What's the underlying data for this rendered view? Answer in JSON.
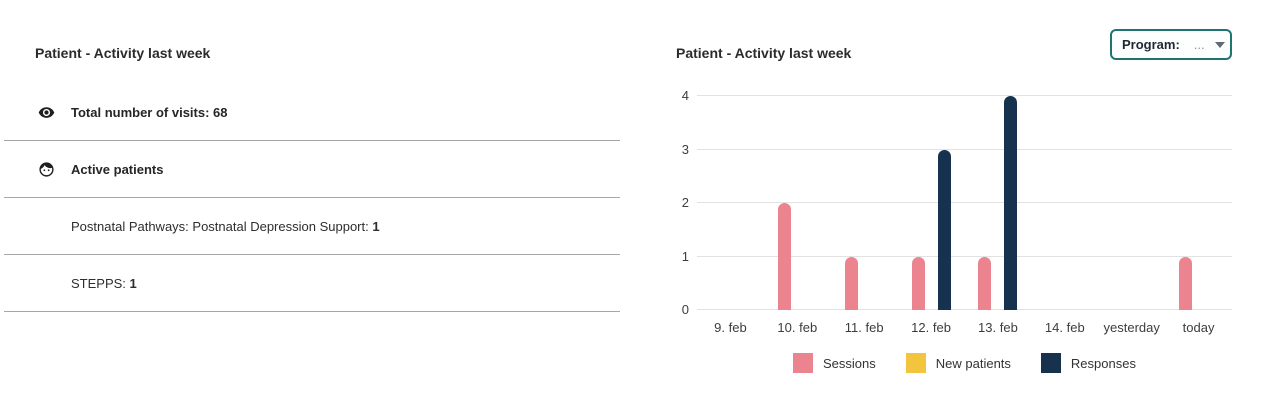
{
  "left_panel": {
    "title": "Patient - Activity last week",
    "rows": [
      {
        "icon": "eye-icon",
        "label": "Total number of visits: 68",
        "emphasis": true
      },
      {
        "icon": "face-icon",
        "label": "Active patients",
        "emphasis": true
      },
      {
        "icon": null,
        "label": "Postnatal Pathways: Postnatal Depression Support:",
        "value": "1",
        "emphasis": false
      },
      {
        "icon": null,
        "label": "STEPPS:",
        "value": "1",
        "emphasis": false
      }
    ]
  },
  "right_panel": {
    "title": "Patient - Activity last week",
    "program_filter": {
      "label": "Program:",
      "value": "...",
      "icon": "chevron-down-icon"
    }
  },
  "chart_data": {
    "type": "bar",
    "title": "Patient - Activity last week",
    "categories": [
      "9. feb",
      "10. feb",
      "11. feb",
      "12. feb",
      "13. feb",
      "14. feb",
      "yesterday",
      "today"
    ],
    "series": [
      {
        "name": "Sessions",
        "color": "#ec8490",
        "values": [
          0,
          2,
          1,
          1,
          1,
          0,
          0,
          1
        ]
      },
      {
        "name": "New patients",
        "color": "#f3c43d",
        "values": [
          0,
          0,
          0,
          0,
          0,
          0,
          0,
          0
        ]
      },
      {
        "name": "Responses",
        "color": "#16324f",
        "values": [
          0,
          0,
          0,
          3,
          4,
          0,
          0,
          0
        ]
      }
    ],
    "xlabel": "",
    "ylabel": "",
    "ylim": [
      0,
      4
    ],
    "yticks": [
      0,
      1,
      2,
      3,
      4
    ],
    "grid": true,
    "legend_position": "bottom",
    "bar_style": "rounded-top"
  },
  "colors": {
    "sessions_pink": "#ec8490",
    "new_patients_yellow": "#f3c43d",
    "responses_navy": "#16324f",
    "filter_border_teal": "#1e756f",
    "divider_gray": "#a6a6a6",
    "gridline_gray": "#e2e2e2"
  }
}
